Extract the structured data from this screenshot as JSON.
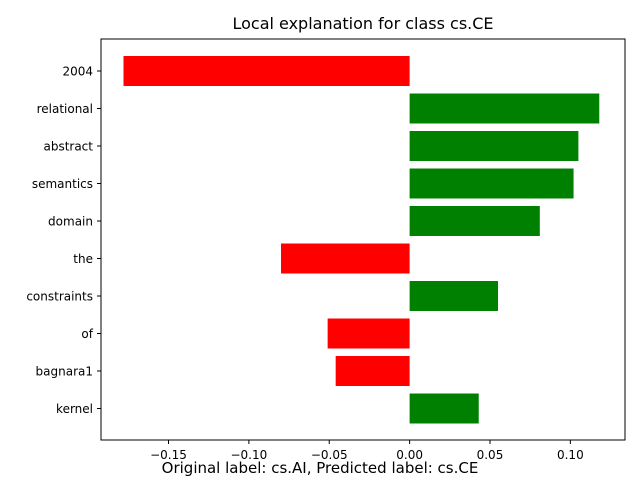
{
  "chart_data": {
    "type": "bar",
    "orientation": "horizontal",
    "title": "Local explanation for class cs.CE",
    "caption": "Original label: cs.AI, Predicted label: cs.CE",
    "categories": [
      "2004",
      "relational",
      "abstract",
      "semantics",
      "domain",
      "the",
      "constraints",
      "of",
      "bagnara1",
      "kernel"
    ],
    "values": [
      -0.178,
      0.118,
      0.105,
      0.102,
      0.081,
      -0.08,
      0.055,
      -0.051,
      -0.046,
      0.043
    ],
    "xlim": [
      -0.192,
      0.134
    ],
    "xticks": [
      -0.15,
      -0.1,
      -0.05,
      0.0,
      0.05,
      0.1
    ],
    "xtick_labels": [
      "−0.15",
      "−0.10",
      "−0.05",
      "0.00",
      "0.05",
      "0.10"
    ],
    "grid": false,
    "colors": {
      "positive": "#008000",
      "negative": "#ff0000"
    }
  }
}
